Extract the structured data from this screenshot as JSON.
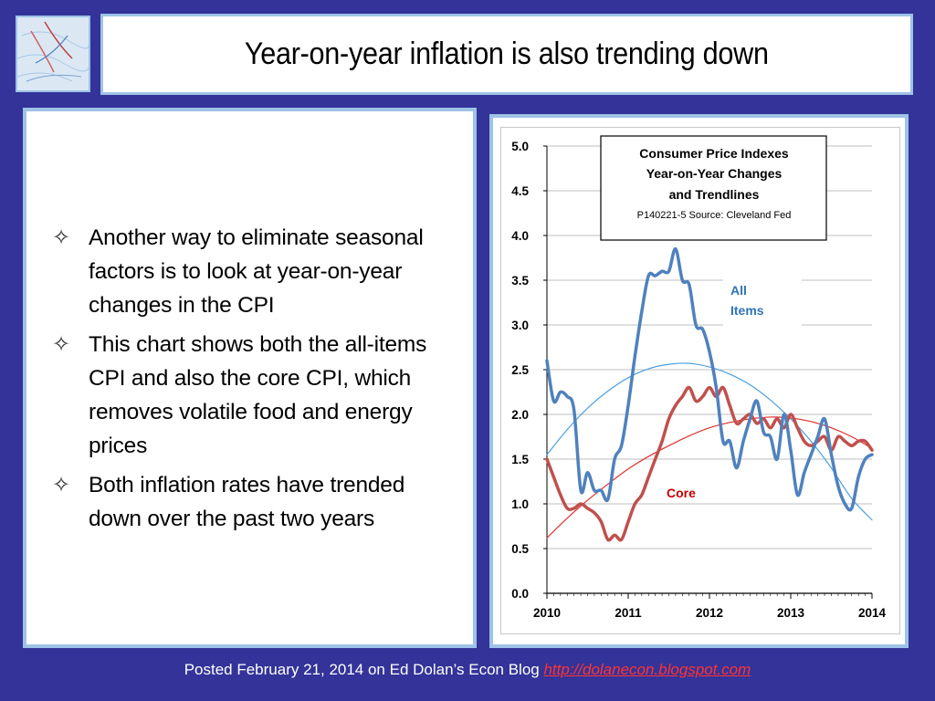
{
  "slide": {
    "title": "Year-on-year inflation is also trending down",
    "bullets": [
      "Another way to eliminate seasonal factors is to look at year-on-year changes in the CPI",
      "This chart shows both the all-items CPI and also the core CPI, which removes volatile food and energy prices",
      "Both inflation rates have trended down over the past two years"
    ],
    "bullet_symbol": "✧",
    "footer": {
      "text": "Posted February 21, 2014 on Ed Dolan’s Econ Blog ",
      "link": "http://dolanecon.blogspot.com"
    }
  },
  "colors": {
    "background": "#333399",
    "panel_border": "#9ec3e6",
    "all_items": "#4f81bd",
    "core": "#c0504d",
    "trend_all": "#4a9fe0",
    "trend_core": "#e03030",
    "label_all": "#2e75b6",
    "label_core": "#c00000",
    "link": "#ff3333"
  },
  "chart_data": {
    "type": "line",
    "title": "Consumer Price Indexes Year-on-Year Changes and Trendlines",
    "subtitle": "P140221-5 Source: Cleveland Fed",
    "xlim": [
      2010,
      2014
    ],
    "ylim": [
      0,
      5
    ],
    "x_ticks": [
      "2010",
      "2011",
      "2012",
      "2013",
      "2014"
    ],
    "y_ticks": [
      "0.0",
      "0.5",
      "1.0",
      "1.5",
      "2.0",
      "2.5",
      "3.0",
      "3.5",
      "4.0",
      "4.5",
      "5.0"
    ],
    "grid": true,
    "annotations": [
      "All Items",
      "Core"
    ],
    "series": [
      {
        "name": "All Items",
        "x": [
          2010.0,
          2010.083,
          2010.167,
          2010.25,
          2010.333,
          2010.417,
          2010.5,
          2010.583,
          2010.667,
          2010.75,
          2010.833,
          2010.917,
          2011.0,
          2011.083,
          2011.167,
          2011.25,
          2011.333,
          2011.417,
          2011.5,
          2011.583,
          2011.667,
          2011.75,
          2011.833,
          2011.917,
          2012.0,
          2012.083,
          2012.167,
          2012.25,
          2012.333,
          2012.417,
          2012.5,
          2012.583,
          2012.667,
          2012.75,
          2012.833,
          2012.917,
          2013.0,
          2013.083,
          2013.167,
          2013.25,
          2013.333,
          2013.417,
          2013.5,
          2013.583,
          2013.667,
          2013.75,
          2013.833,
          2013.917,
          2014.0
        ],
        "values": [
          2.6,
          2.15,
          2.25,
          2.2,
          2.05,
          1.15,
          1.35,
          1.15,
          1.15,
          1.05,
          1.5,
          1.65,
          2.1,
          2.65,
          3.15,
          3.55,
          3.55,
          3.6,
          3.6,
          3.85,
          3.5,
          3.45,
          3.0,
          2.95,
          2.7,
          2.3,
          1.7,
          1.7,
          1.4,
          1.7,
          1.95,
          2.15,
          1.8,
          1.75,
          1.5,
          2.0,
          1.6,
          1.1,
          1.35,
          1.55,
          1.75,
          1.95,
          1.55,
          1.2,
          1.0,
          0.95,
          1.3,
          1.5,
          1.55
        ]
      },
      {
        "name": "Core",
        "x": [
          2010.0,
          2010.083,
          2010.167,
          2010.25,
          2010.333,
          2010.417,
          2010.5,
          2010.583,
          2010.667,
          2010.75,
          2010.833,
          2010.917,
          2011.0,
          2011.083,
          2011.167,
          2011.25,
          2011.333,
          2011.417,
          2011.5,
          2011.583,
          2011.667,
          2011.75,
          2011.833,
          2011.917,
          2012.0,
          2012.083,
          2012.167,
          2012.25,
          2012.333,
          2012.417,
          2012.5,
          2012.583,
          2012.667,
          2012.75,
          2012.833,
          2012.917,
          2013.0,
          2013.083,
          2013.167,
          2013.25,
          2013.333,
          2013.417,
          2013.5,
          2013.583,
          2013.667,
          2013.75,
          2013.833,
          2013.917,
          2014.0
        ],
        "values": [
          1.5,
          1.3,
          1.1,
          0.95,
          0.95,
          1.0,
          0.95,
          0.9,
          0.8,
          0.6,
          0.65,
          0.6,
          0.8,
          1.0,
          1.1,
          1.3,
          1.5,
          1.7,
          1.95,
          2.1,
          2.2,
          2.3,
          2.15,
          2.2,
          2.3,
          2.2,
          2.3,
          2.1,
          1.9,
          1.95,
          2.0,
          1.9,
          1.95,
          1.85,
          1.95,
          1.85,
          2.0,
          1.85,
          1.7,
          1.65,
          1.7,
          1.75,
          1.6,
          1.75,
          1.7,
          1.65,
          1.7,
          1.7,
          1.6
        ]
      },
      {
        "name": "All Items Trendline",
        "x": [
          2010.0,
          2010.25,
          2010.5,
          2010.75,
          2011.0,
          2011.25,
          2011.5,
          2011.75,
          2012.0,
          2012.25,
          2012.5,
          2012.75,
          2013.0,
          2013.25,
          2013.5,
          2013.75,
          2014.0
        ],
        "values": [
          1.55,
          1.83,
          2.07,
          2.26,
          2.41,
          2.51,
          2.56,
          2.57,
          2.53,
          2.45,
          2.33,
          2.16,
          1.95,
          1.7,
          1.4,
          1.06,
          0.82
        ]
      },
      {
        "name": "Core Trendline",
        "x": [
          2010.0,
          2010.25,
          2010.5,
          2010.75,
          2011.0,
          2011.25,
          2011.5,
          2011.75,
          2012.0,
          2012.25,
          2012.5,
          2012.75,
          2013.0,
          2013.25,
          2013.5,
          2013.75,
          2014.0
        ],
        "values": [
          0.62,
          0.84,
          1.04,
          1.22,
          1.39,
          1.53,
          1.65,
          1.76,
          1.85,
          1.91,
          1.95,
          1.97,
          1.96,
          1.92,
          1.85,
          1.75,
          1.62
        ]
      }
    ]
  }
}
